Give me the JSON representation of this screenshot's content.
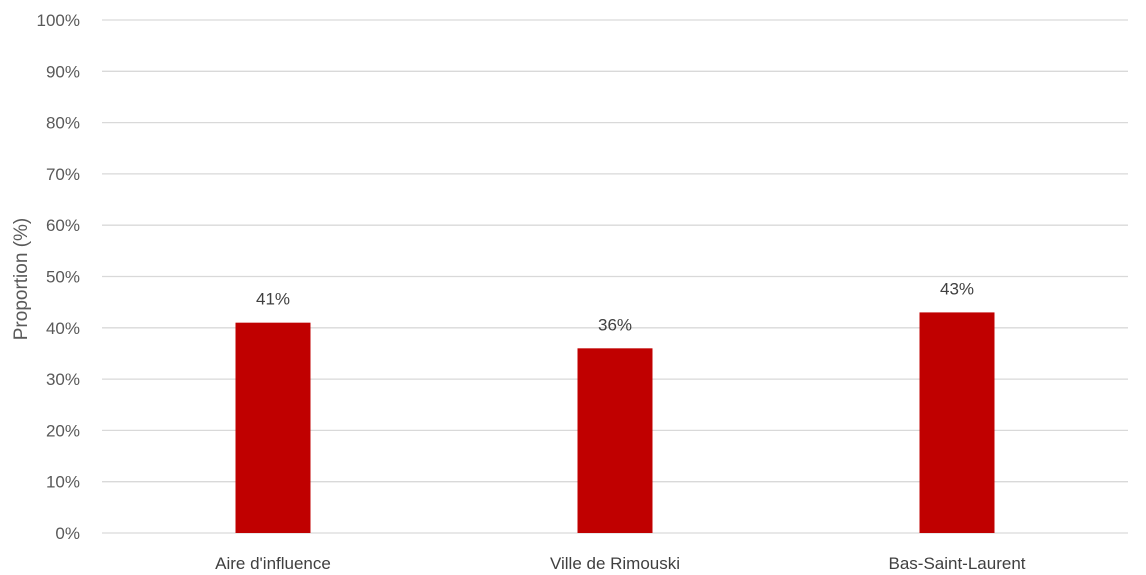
{
  "chart_data": {
    "type": "bar",
    "title": "",
    "xlabel": "",
    "ylabel": "Proportion (%)",
    "categories": [
      "Aire d'influence",
      "Ville de Rimouski",
      "Bas-Saint-Laurent"
    ],
    "values": [
      41,
      36,
      43
    ],
    "data_labels": [
      "41%",
      "36%",
      "43%"
    ],
    "ylim": [
      0,
      100
    ],
    "y_ticks": [
      0,
      10,
      20,
      30,
      40,
      50,
      60,
      70,
      80,
      90,
      100
    ],
    "y_tick_labels": [
      "0%",
      "10%",
      "20%",
      "30%",
      "40%",
      "50%",
      "60%",
      "70%",
      "80%",
      "90%",
      "100%"
    ],
    "grid": true,
    "legend": "none",
    "bar_color": "#C00000",
    "grid_color": "#D9D9D9"
  }
}
